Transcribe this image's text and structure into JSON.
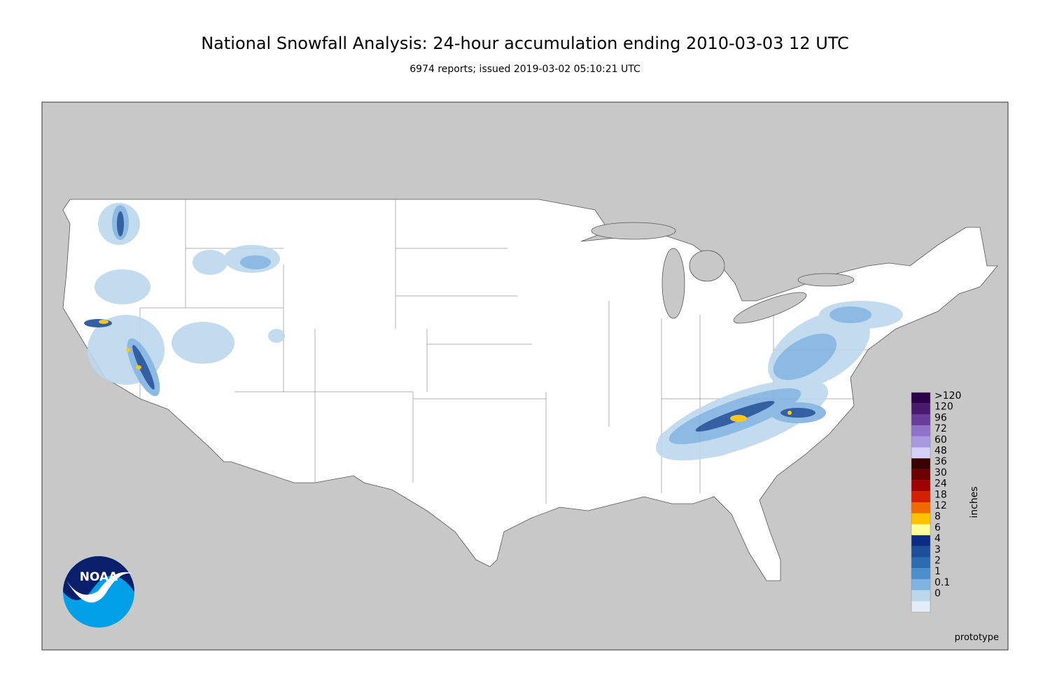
{
  "header": {
    "title": "National Snowfall Analysis: 24-hour accumulation ending 2010-03-03 12 UTC",
    "subtitle": "6974 reports; issued 2019-03-02 05:10:21 UTC"
  },
  "logo": {
    "text": "NOAA"
  },
  "legend": {
    "unit": "inches",
    "items": [
      {
        "label": ">120",
        "color": "#2d004b"
      },
      {
        "label": "120",
        "color": "#4a1a6e"
      },
      {
        "label": "96",
        "color": "#6a3d9a"
      },
      {
        "label": "72",
        "color": "#8f73c8"
      },
      {
        "label": "60",
        "color": "#a99ae0"
      },
      {
        "label": "48",
        "color": "#d2cff8"
      },
      {
        "label": "36",
        "color": "#3a0000"
      },
      {
        "label": "30",
        "color": "#6e0000"
      },
      {
        "label": "24",
        "color": "#a00000"
      },
      {
        "label": "18",
        "color": "#d42000"
      },
      {
        "label": "12",
        "color": "#f06a00"
      },
      {
        "label": "8",
        "color": "#ffc000"
      },
      {
        "label": "6",
        "color": "#ffff99"
      },
      {
        "label": "4",
        "color": "#0c2c84"
      },
      {
        "label": "3",
        "color": "#1d4f98"
      },
      {
        "label": "2",
        "color": "#2b6cb0"
      },
      {
        "label": "1",
        "color": "#4a8fcb"
      },
      {
        "label": "0.1",
        "color": "#7fb3df"
      },
      {
        "label": "0",
        "color": "#bcd7ec"
      }
    ],
    "base_color": "#e2edf7"
  },
  "footer": {
    "note": "prototype"
  }
}
